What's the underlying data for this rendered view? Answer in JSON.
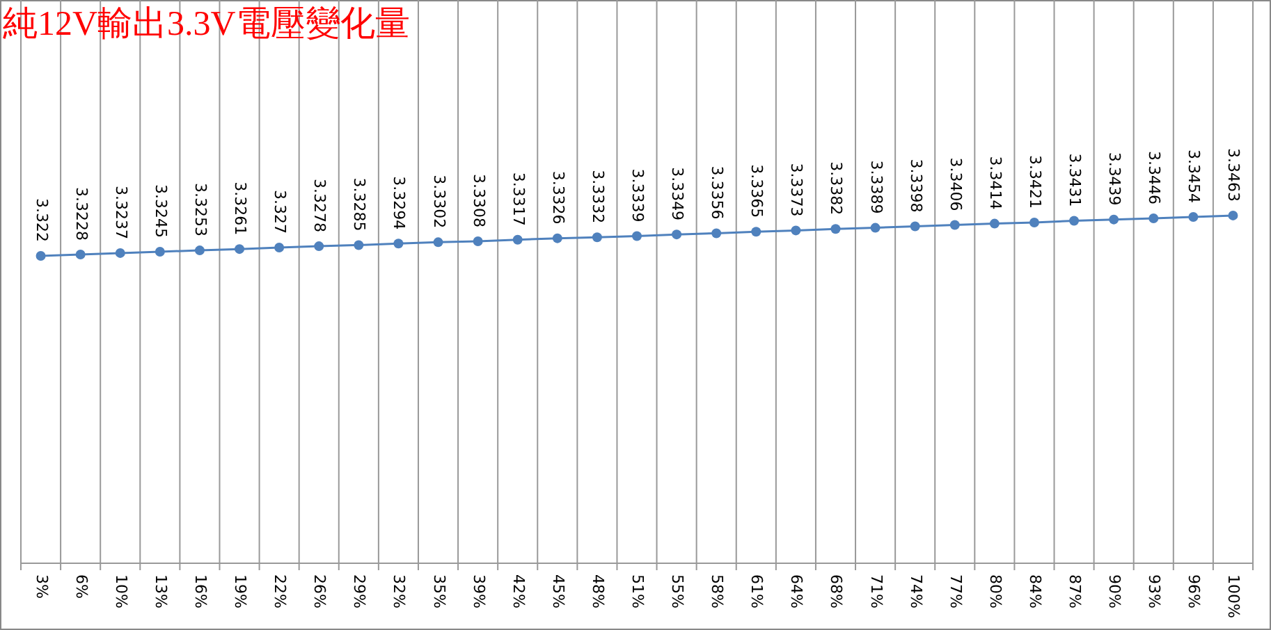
{
  "chart_data": {
    "type": "line",
    "title": "純12V輸出3.3V電壓變化量",
    "categories": [
      "3%",
      "6%",
      "10%",
      "13%",
      "16%",
      "19%",
      "22%",
      "26%",
      "29%",
      "32%",
      "35%",
      "39%",
      "42%",
      "45%",
      "48%",
      "51%",
      "55%",
      "58%",
      "61%",
      "64%",
      "68%",
      "71%",
      "74%",
      "77%",
      "80%",
      "84%",
      "87%",
      "90%",
      "93%",
      "96%",
      "100%"
    ],
    "series": [
      {
        "color": "#4f81bd",
        "values": [
          3.322,
          3.3228,
          3.3237,
          3.3245,
          3.3253,
          3.3261,
          3.327,
          3.3278,
          3.3285,
          3.3294,
          3.3302,
          3.3308,
          3.3317,
          3.3326,
          3.3332,
          3.3339,
          3.3349,
          3.3356,
          3.3365,
          3.3373,
          3.3382,
          3.3389,
          3.3398,
          3.3406,
          3.3414,
          3.3421,
          3.3431,
          3.3439,
          3.3446,
          3.3454,
          3.3463
        ]
      }
    ],
    "ylim": [
      3.137,
      3.476
    ],
    "data_labels": true,
    "grid": "x",
    "marker": "circle"
  }
}
